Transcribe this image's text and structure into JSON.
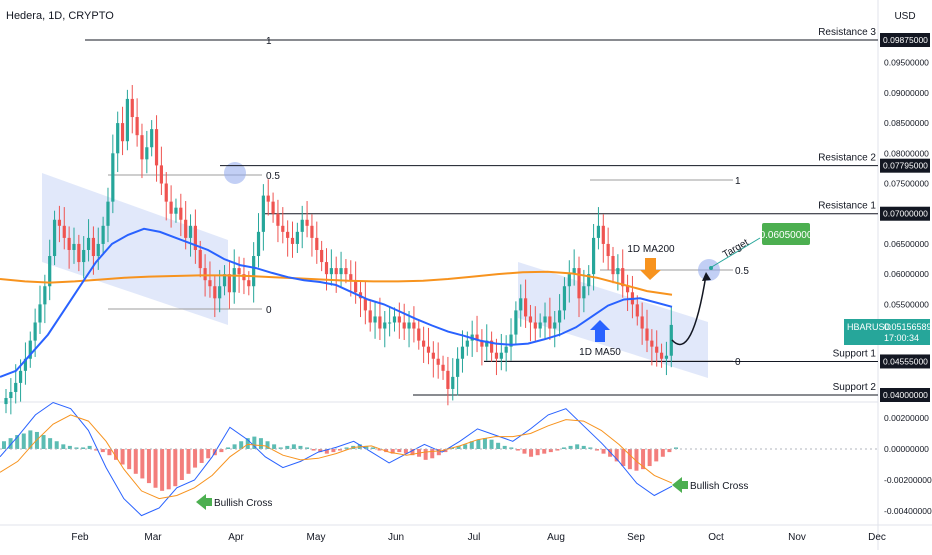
{
  "header": {
    "title": "Hedera, 1D, CRYPTO",
    "currency": "USD"
  },
  "colors": {
    "up": "#26a69a",
    "down": "#ef5350",
    "ma50": "#2962ff",
    "ma200": "#f7931e",
    "channel": "#c9d6f5",
    "green_label": "#4caf50",
    "dark_label": "#131722"
  },
  "chart_data": [
    {
      "type": "candlestick",
      "title": "Hedera, 1D, CRYPTO",
      "x_tick_labels": [
        "Feb",
        "Mar",
        "Apr",
        "May",
        "Jun",
        "Jul",
        "Aug",
        "Sep",
        "Oct",
        "Nov",
        "Dec"
      ],
      "y_tick_labels": [
        "0.09500000",
        "0.09000000",
        "0.08500000",
        "0.08000000",
        "0.07500000",
        "0.06500000",
        "0.06000000",
        "0.05500000"
      ],
      "ylim": [
        0.038,
        0.1
      ],
      "current_price": {
        "symbol": "HBARUSD",
        "value": "0.05156589",
        "countdown": "17:00:34",
        "numeric": 0.0516
      },
      "key_levels": [
        {
          "label": "Resistance 3",
          "value": "0.09875000",
          "numeric": 0.09875
        },
        {
          "label": "Resistance 2",
          "value": "0.07795000",
          "numeric": 0.07795
        },
        {
          "label": "Resistance 1",
          "value": "0.07000000",
          "numeric": 0.07
        },
        {
          "label": "Support 1",
          "value": "0.04555000",
          "numeric": 0.04555
        },
        {
          "label": "Support 2",
          "value": "0.04000000",
          "numeric": 0.04
        }
      ],
      "fib_labels": [
        "1",
        "0.5",
        "0",
        "1",
        "0.5",
        "0"
      ],
      "annotations": {
        "target_label": "Target",
        "target_value": "0.06050000",
        "ma200_label": "1D MA200",
        "ma50_label": "1D MA50"
      },
      "close_series": [
        0.0395,
        0.0405,
        0.042,
        0.044,
        0.046,
        0.049,
        0.052,
        0.055,
        0.058,
        0.063,
        0.069,
        0.068,
        0.066,
        0.064,
        0.065,
        0.062,
        0.064,
        0.066,
        0.063,
        0.065,
        0.068,
        0.072,
        0.08,
        0.085,
        0.082,
        0.089,
        0.086,
        0.083,
        0.079,
        0.081,
        0.084,
        0.078,
        0.075,
        0.072,
        0.07,
        0.071,
        0.069,
        0.066,
        0.068,
        0.064,
        0.061,
        0.059,
        0.058,
        0.056,
        0.058,
        0.06,
        0.057,
        0.061,
        0.06,
        0.059,
        0.058,
        0.063,
        0.067,
        0.073,
        0.072,
        0.07,
        0.068,
        0.067,
        0.066,
        0.065,
        0.067,
        0.069,
        0.068,
        0.066,
        0.064,
        0.062,
        0.06,
        0.061,
        0.06,
        0.061,
        0.06,
        0.059,
        0.057,
        0.056,
        0.054,
        0.052,
        0.053,
        0.051,
        0.052,
        0.052,
        0.053,
        0.052,
        0.051,
        0.052,
        0.051,
        0.049,
        0.048,
        0.047,
        0.046,
        0.045,
        0.044,
        0.041,
        0.043,
        0.046,
        0.048,
        0.049,
        0.05,
        0.049,
        0.048,
        0.049,
        0.047,
        0.046,
        0.047,
        0.048,
        0.05,
        0.054,
        0.056,
        0.053,
        0.052,
        0.051,
        0.052,
        0.053,
        0.051,
        0.052,
        0.054,
        0.058,
        0.06,
        0.061,
        0.056,
        0.058,
        0.06,
        0.066,
        0.068,
        0.065,
        0.063,
        0.06,
        0.061,
        0.058,
        0.057,
        0.055,
        0.053,
        0.051,
        0.049,
        0.048,
        0.047,
        0.046,
        0.0465,
        0.0516
      ],
      "ma50_series": [
        0.043,
        0.044,
        0.047,
        0.05,
        0.054,
        0.058,
        0.062,
        0.065,
        0.0665,
        0.0675,
        0.067,
        0.066,
        0.065,
        0.064,
        0.0625,
        0.0615,
        0.061,
        0.0602,
        0.0595,
        0.059,
        0.0587,
        0.0582,
        0.057,
        0.0558,
        0.055,
        0.0538,
        0.0526,
        0.0515,
        0.0505,
        0.0498,
        0.049,
        0.0485,
        0.0483,
        0.0485,
        0.0492,
        0.05,
        0.0512,
        0.053,
        0.0548,
        0.0558,
        0.056,
        0.0553,
        0.0546
      ],
      "ma200_series": [
        0.0592,
        0.0588,
        0.0586,
        0.0588,
        0.0591,
        0.0594,
        0.0596,
        0.0597,
        0.0598,
        0.0598,
        0.0597,
        0.0595,
        0.0593,
        0.0591,
        0.0589,
        0.0588,
        0.0588,
        0.0589,
        0.0592,
        0.0596,
        0.06,
        0.0603,
        0.0604,
        0.0601,
        0.0594,
        0.0583,
        0.0572,
        0.0566
      ],
      "markers": [
        "Bullish Cross",
        "Bullish Cross"
      ]
    },
    {
      "type": "macd",
      "y_tick_labels": [
        "0.00200000",
        "0.00000000",
        "-0.00200000",
        "-0.00400000"
      ],
      "ylim": [
        -0.0044,
        0.0031
      ],
      "histogram": [
        0.0005,
        0.0007,
        0.0009,
        0.001,
        0.0012,
        0.0011,
        0.0009,
        0.0007,
        0.0005,
        0.0003,
        0.0002,
        0.0001,
        0.0001,
        0.0002,
        -0.0001,
        -0.0002,
        -0.0004,
        -0.0007,
        -0.001,
        -0.0013,
        -0.0016,
        -0.0019,
        -0.0022,
        -0.0025,
        -0.0027,
        -0.0026,
        -0.0024,
        -0.002,
        -0.0016,
        -0.0012,
        -0.0009,
        -0.0006,
        -0.0004,
        -0.0002,
        0.0001,
        0.0003,
        0.0005,
        0.0007,
        0.0008,
        0.0007,
        0.0005,
        0.0003,
        0.0001,
        0.0002,
        0.0003,
        0.0002,
        0.0001,
        -0.0001,
        -0.0002,
        -0.0003,
        -0.0002,
        -0.0001,
        0.0001,
        0.0002,
        0.0003,
        0.0002,
        0.0001,
        -0.0001,
        -0.0002,
        -0.0003,
        -0.0002,
        -0.0003,
        -0.0004,
        -0.0005,
        -0.0007,
        -0.0006,
        -0.0004,
        -0.0002,
        0.0001,
        0.0002,
        0.0003,
        0.0005,
        0.0006,
        0.0007,
        0.0006,
        0.0004,
        0.0002,
        0.0001,
        -0.0001,
        -0.0003,
        -0.0005,
        -0.0004,
        -0.0003,
        -0.0002,
        -0.0001,
        0.0001,
        0.0002,
        0.0003,
        0.0002,
        0.0001,
        -0.0001,
        -0.0003,
        -0.0005,
        -0.0008,
        -0.0011,
        -0.0013,
        -0.0014,
        -0.0013,
        -0.0011,
        -0.0008,
        -0.0005,
        -0.0002,
        0.0001
      ],
      "macd_line": [
        -0.0005,
        0.0008,
        0.0022,
        0.003,
        0.0026,
        0.0012,
        -0.0012,
        -0.0032,
        -0.0043,
        -0.0038,
        -0.0025,
        -0.002,
        -0.0005,
        0.0014,
        0.0006,
        -0.0005,
        -0.0012,
        -0.0008,
        -0.0002,
        0.0001,
        0.0005,
        -0.0002,
        -0.0009,
        -0.0003,
        0.0003,
        -0.0002,
        0.0005,
        0.0013,
        0.0009,
        0.0005,
        0.0013,
        0.0022,
        0.0026,
        0.0015,
        0.0004,
        -0.0008,
        -0.0022,
        -0.003,
        -0.0024
      ],
      "signal_line": [
        -0.0015,
        -0.0008,
        0.0005,
        0.0016,
        0.0022,
        0.0018,
        0.0005,
        -0.0013,
        -0.0027,
        -0.0032,
        -0.003,
        -0.0025,
        -0.0017,
        -0.0005,
        0.0003,
        0.0002,
        -0.0004,
        -0.0007,
        -0.0006,
        -0.0003,
        0.0001,
        0.0002,
        -0.0002,
        -0.0004,
        -0.0002,
        -0.0001,
        0.0002,
        0.0006,
        0.0008,
        0.0008,
        0.001,
        0.0015,
        0.0019,
        0.0018,
        0.0012,
        0.0003,
        -0.0008,
        -0.0017,
        -0.0022
      ]
    }
  ]
}
